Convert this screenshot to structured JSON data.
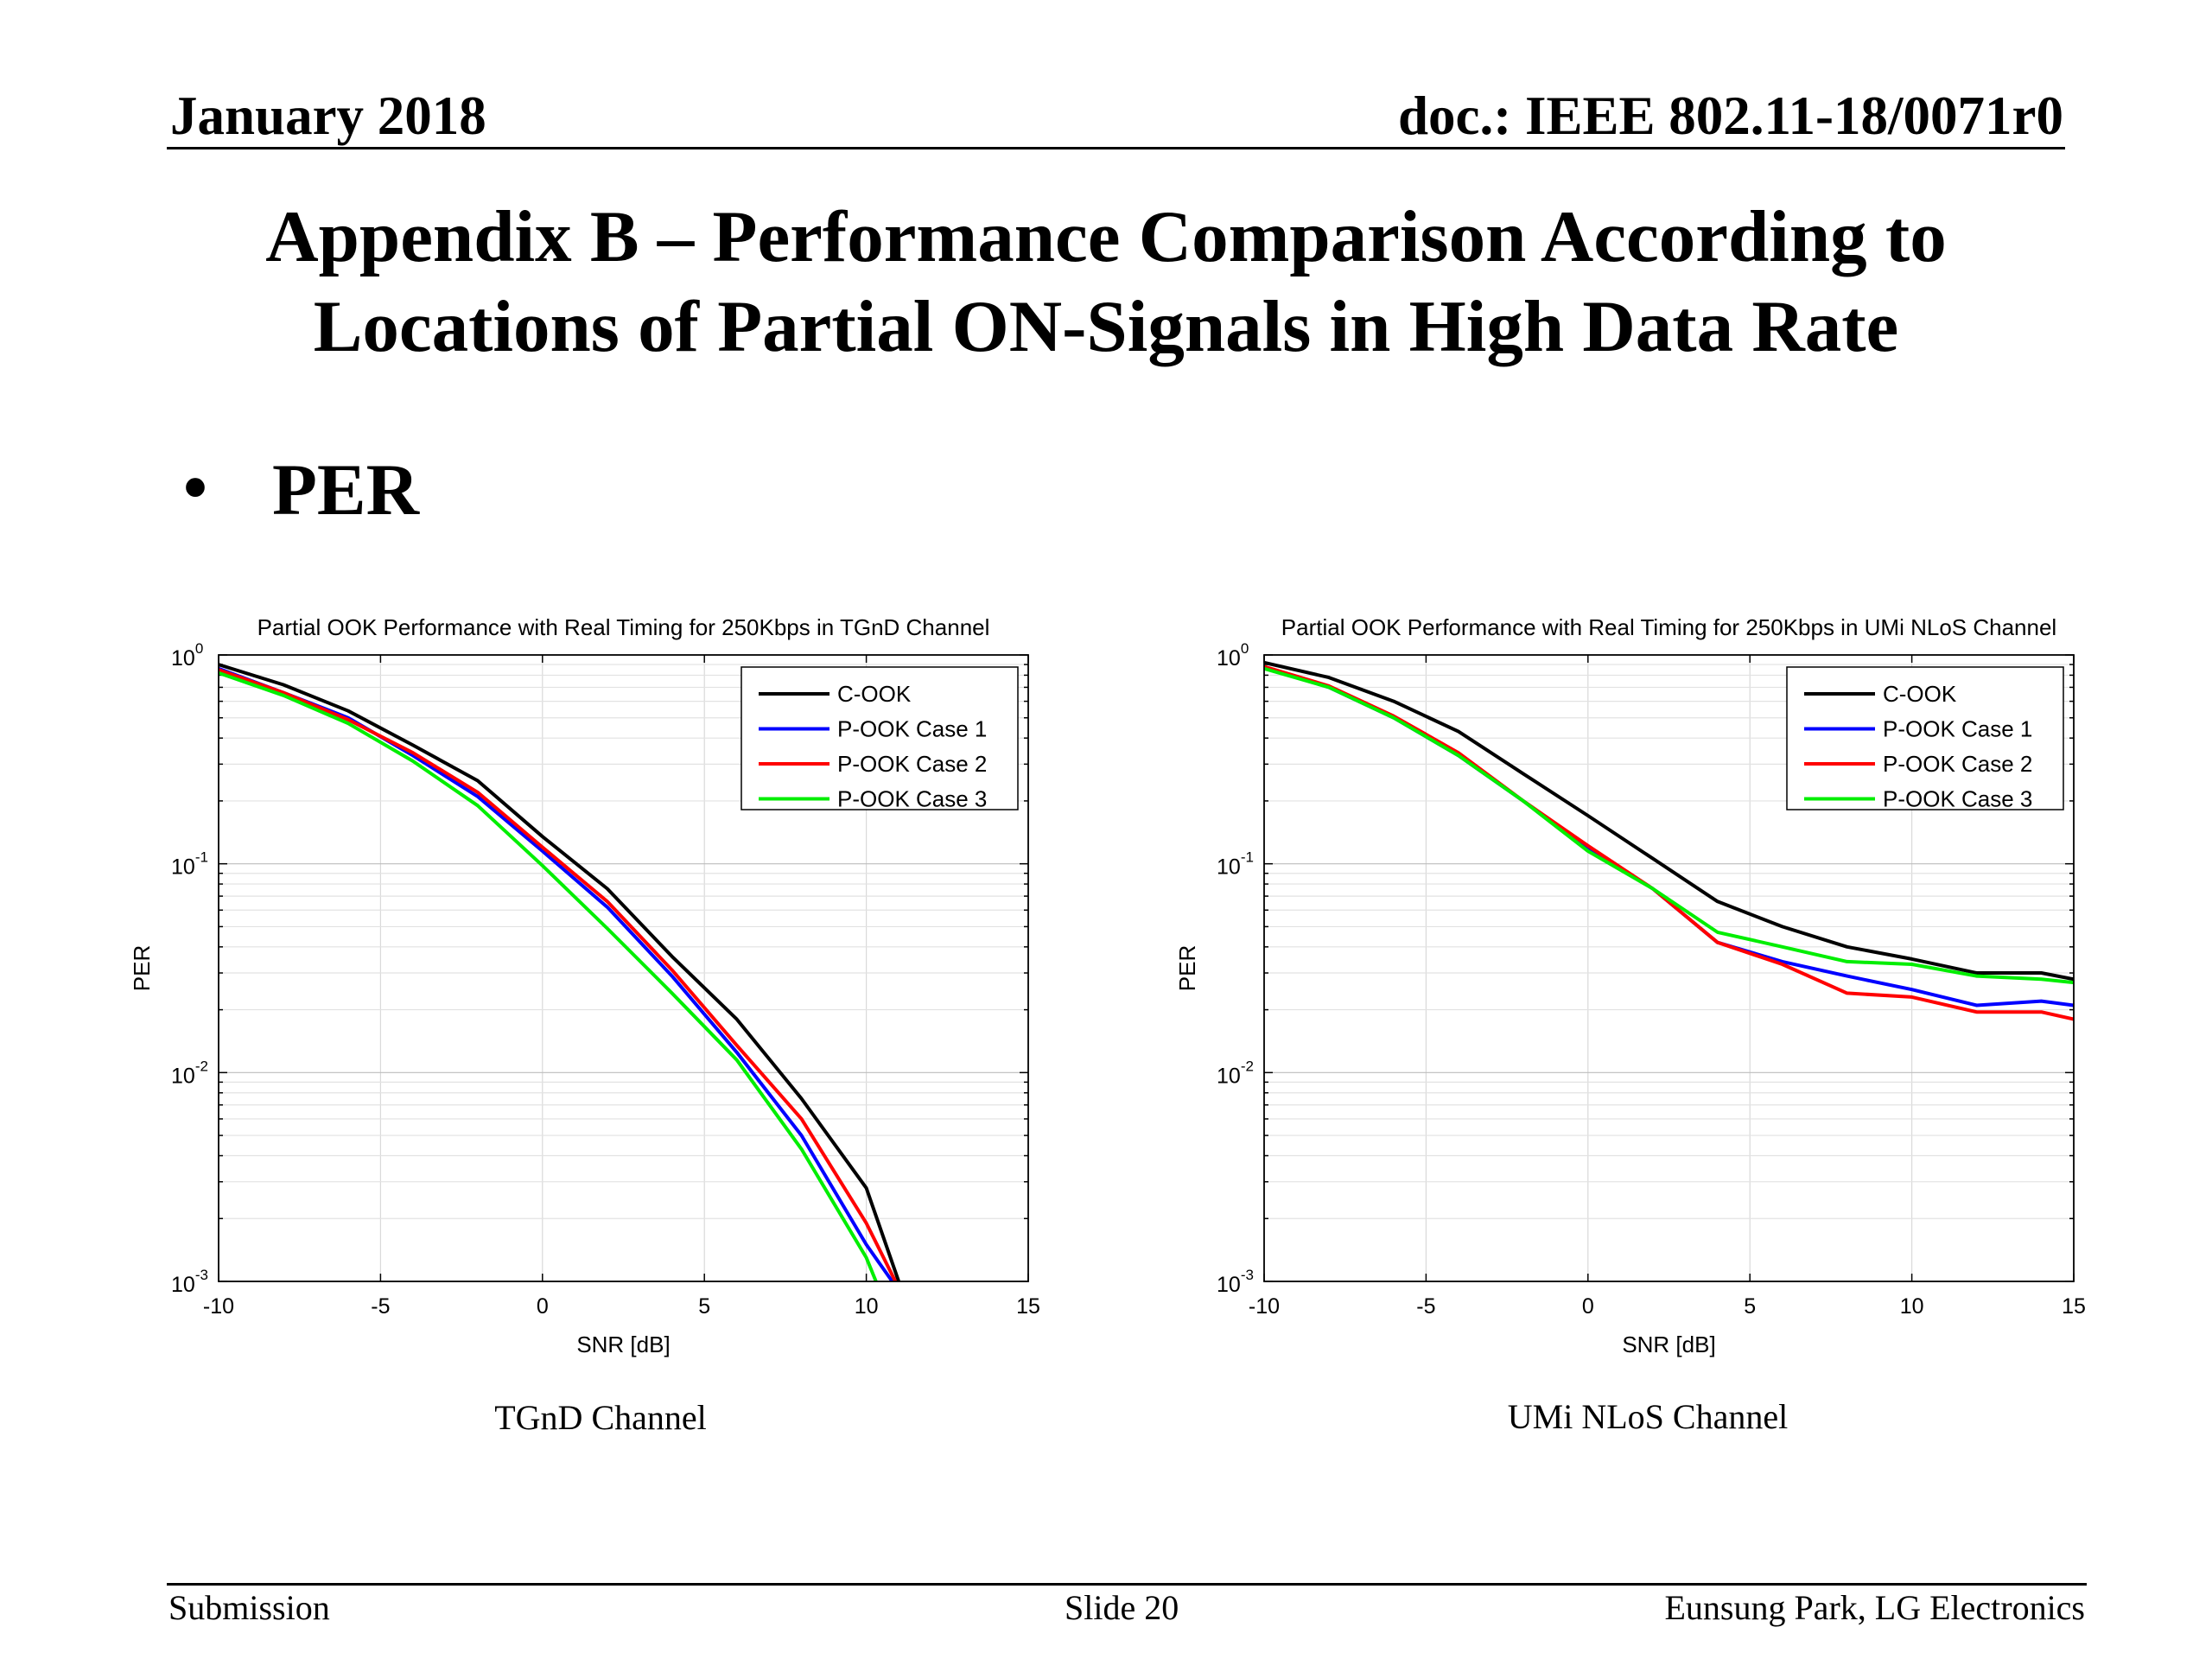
{
  "header": {
    "date": "January 2018",
    "doc": "doc.: IEEE 802.11-18/0071r0"
  },
  "slide_title": {
    "line1": "Appendix B – Performance Comparison According to",
    "line2": "Locations of Partial ON-Signals in High Data Rate"
  },
  "bullet": {
    "marker": "•",
    "text": "PER"
  },
  "chart_data": [
    {
      "type": "line",
      "title": "Partial OOK Performance with Real Timing for 250Kbps in TGnD Channel",
      "xlabel": "SNR [dB]",
      "ylabel": "PER",
      "xlim": [
        -10,
        15
      ],
      "ylim": [
        0.001,
        1
      ],
      "yscale": "log",
      "xticks": [
        -10,
        -5,
        0,
        5,
        10,
        15
      ],
      "yticks": [
        1,
        0.1,
        0.01,
        0.001
      ],
      "grid": true,
      "legend_position": "top-right",
      "series": [
        {
          "name": "C-OOK",
          "color": "#000000",
          "x": [
            -10,
            -8,
            -6,
            -4,
            -2,
            0,
            2,
            4,
            6,
            8,
            10,
            11
          ],
          "y": [
            0.9,
            0.72,
            0.54,
            0.37,
            0.25,
            0.135,
            0.076,
            0.036,
            0.018,
            0.0075,
            0.0028,
            0.001
          ]
        },
        {
          "name": "P-OOK Case 1",
          "color": "#0000ff",
          "x": [
            -10,
            -8,
            -6,
            -4,
            -2,
            0,
            2,
            4,
            6,
            8,
            10,
            10.8
          ],
          "y": [
            0.86,
            0.66,
            0.5,
            0.33,
            0.21,
            0.115,
            0.062,
            0.029,
            0.0125,
            0.005,
            0.0015,
            0.001
          ]
        },
        {
          "name": "P-OOK Case 2",
          "color": "#ff0000",
          "x": [
            -10,
            -8,
            -6,
            -4,
            -2,
            0,
            2,
            4,
            6,
            8,
            10,
            10.9
          ],
          "y": [
            0.85,
            0.66,
            0.49,
            0.34,
            0.22,
            0.12,
            0.066,
            0.031,
            0.0135,
            0.006,
            0.0019,
            0.001
          ]
        },
        {
          "name": "P-OOK Case 3",
          "color": "#00ee00",
          "x": [
            -10,
            -8,
            -6,
            -4,
            -2,
            0,
            2,
            4,
            6,
            8,
            10,
            10.3
          ],
          "y": [
            0.82,
            0.64,
            0.47,
            0.31,
            0.19,
            0.098,
            0.049,
            0.024,
            0.0115,
            0.0043,
            0.0013,
            0.001
          ]
        }
      ]
    },
    {
      "type": "line",
      "title": "Partial OOK Performance with Real Timing for 250Kbps in UMi NLoS Channel",
      "xlabel": "SNR [dB]",
      "ylabel": "PER",
      "xlim": [
        -10,
        15
      ],
      "ylim": [
        0.001,
        1
      ],
      "yscale": "log",
      "xticks": [
        -10,
        -5,
        0,
        5,
        10,
        15
      ],
      "yticks": [
        1,
        0.1,
        0.01,
        0.001
      ],
      "grid": true,
      "legend_position": "top-right",
      "series": [
        {
          "name": "C-OOK",
          "color": "#000000",
          "x": [
            -10,
            -8,
            -6,
            -4,
            -2,
            0,
            2,
            4,
            6,
            8,
            10,
            12,
            14,
            15
          ],
          "y": [
            0.92,
            0.78,
            0.6,
            0.43,
            0.27,
            0.17,
            0.106,
            0.066,
            0.05,
            0.04,
            0.035,
            0.03,
            0.03,
            0.028
          ]
        },
        {
          "name": "P-OOK Case 1",
          "color": "#0000ff",
          "x": [
            -10,
            -8,
            -6,
            -4,
            -2,
            0,
            2,
            4,
            6,
            8,
            10,
            12,
            14,
            15
          ],
          "y": [
            0.87,
            0.7,
            0.5,
            0.33,
            0.2,
            0.12,
            0.076,
            0.042,
            0.034,
            0.029,
            0.025,
            0.021,
            0.022,
            0.021
          ]
        },
        {
          "name": "P-OOK Case 2",
          "color": "#ff0000",
          "x": [
            -10,
            -8,
            -6,
            -4,
            -2,
            0,
            2,
            4,
            6,
            8,
            10,
            12,
            14,
            15
          ],
          "y": [
            0.88,
            0.71,
            0.51,
            0.34,
            0.2,
            0.122,
            0.076,
            0.042,
            0.033,
            0.024,
            0.023,
            0.0195,
            0.0195,
            0.018
          ]
        },
        {
          "name": "P-OOK Case 3",
          "color": "#00ee00",
          "x": [
            -10,
            -8,
            -6,
            -4,
            -2,
            0,
            2,
            4,
            6,
            8,
            10,
            12,
            14,
            15
          ],
          "y": [
            0.86,
            0.7,
            0.5,
            0.33,
            0.2,
            0.115,
            0.076,
            0.047,
            0.04,
            0.034,
            0.033,
            0.029,
            0.028,
            0.027
          ]
        }
      ]
    }
  ],
  "captions": [
    "TGnD Channel",
    "UMi NLoS Channel"
  ],
  "footer": {
    "left": "Submission",
    "center": "Slide 20",
    "right": "Eunsung Park, LG Electronics"
  }
}
